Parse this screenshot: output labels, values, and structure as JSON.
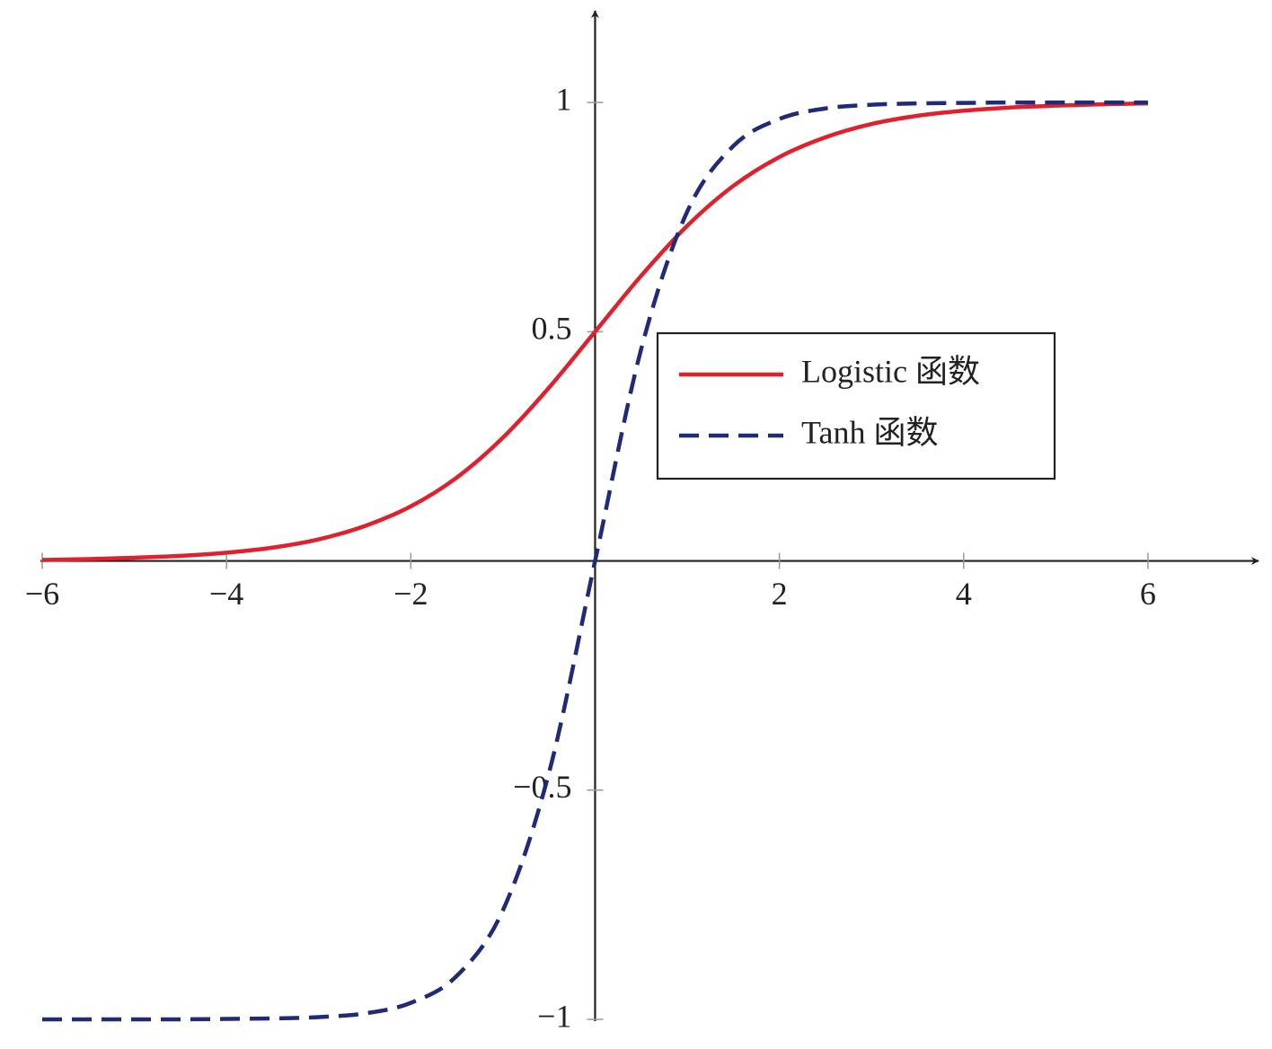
{
  "chart_data": {
    "type": "line",
    "x": [
      -6,
      -5.5,
      -5,
      -4.5,
      -4,
      -3.5,
      -3,
      -2.5,
      -2,
      -1.5,
      -1,
      -0.5,
      0,
      0.5,
      1,
      1.5,
      2,
      2.5,
      3,
      3.5,
      4,
      4.5,
      5,
      5.5,
      6
    ],
    "series": [
      {
        "name": "Logistic 函数",
        "color": "#e0202c",
        "dash": false,
        "values": [
          0.002,
          0.004,
          0.007,
          0.011,
          0.018,
          0.029,
          0.047,
          0.076,
          0.119,
          0.182,
          0.269,
          0.378,
          0.5,
          0.622,
          0.731,
          0.818,
          0.881,
          0.924,
          0.953,
          0.971,
          0.982,
          0.989,
          0.993,
          0.996,
          0.998
        ]
      },
      {
        "name": "Tanh 函数",
        "color": "#1f2a78",
        "dash": true,
        "values": [
          -1.0,
          -1.0,
          -1.0,
          -1.0,
          -0.999,
          -0.998,
          -0.995,
          -0.987,
          -0.964,
          -0.905,
          -0.762,
          -0.462,
          0,
          0.462,
          0.762,
          0.905,
          0.964,
          0.987,
          0.995,
          0.998,
          0.999,
          1.0,
          1.0,
          1.0,
          1.0
        ]
      }
    ],
    "xlim": [
      -6,
      7.2
    ],
    "ylim": [
      -1,
      1.2
    ],
    "xticks": [
      {
        "value": -6,
        "label": "−6"
      },
      {
        "value": -4,
        "label": "−4"
      },
      {
        "value": -2,
        "label": "−2"
      },
      2,
      4,
      6
    ],
    "yticks": [
      {
        "value": -1,
        "label": "−1"
      },
      {
        "value": -0.5,
        "label": "−0.5"
      },
      0.5,
      1
    ],
    "grid": false,
    "legend": "center"
  }
}
